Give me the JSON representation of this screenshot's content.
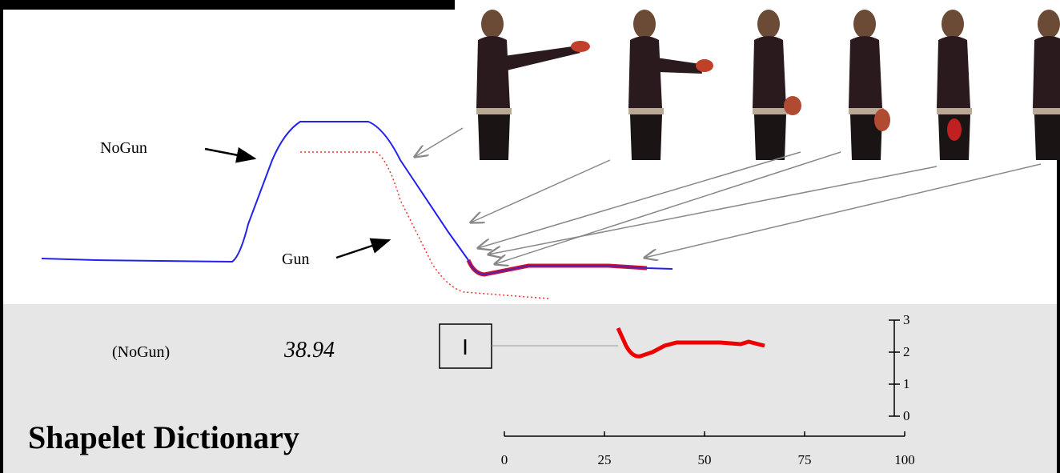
{
  "labels": {
    "nogun": "NoGun",
    "gun": "Gun"
  },
  "dictionary": {
    "class": "(NoGun)",
    "threshold": "38.94",
    "title": "Shapelet Dictionary",
    "glyph": "I",
    "xticks": [
      0,
      25,
      50,
      75,
      100
    ],
    "yticks": [
      0,
      1,
      2,
      3
    ]
  }
}
